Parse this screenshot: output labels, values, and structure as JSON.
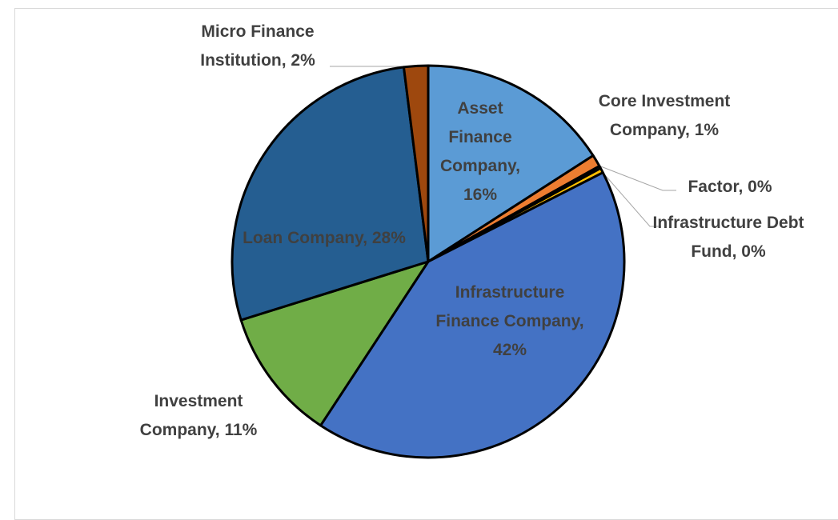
{
  "chart_data": {
    "type": "pie",
    "values": [
      16,
      1,
      0.2,
      0.4,
      42,
      11,
      28,
      2
    ],
    "value_labels": [
      "Asset Finance Company, 16%",
      "Core Investment Company, 1%",
      "Factor, 0%",
      "Infrastructure Debt Fund, 0%",
      "Infrastructure Finance Company, 42%",
      "Investment Company, 11%",
      "Loan Company, 28%",
      "Micro Finance Institution, 2%"
    ],
    "colors": [
      "#5b9bd5",
      "#ed7d31",
      "#a5a5a5",
      "#ffc000",
      "#4472c4",
      "#70ad47",
      "#255e91",
      "#9e480e"
    ]
  }
}
